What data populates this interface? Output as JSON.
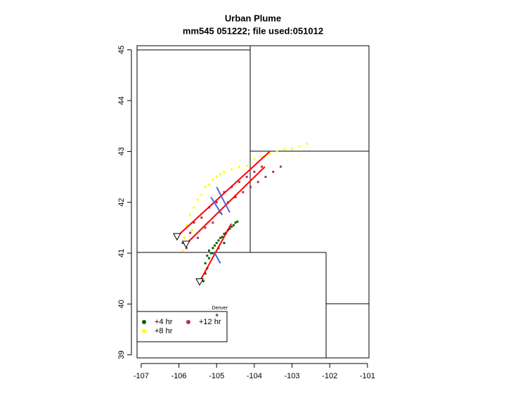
{
  "chart_data": {
    "type": "scatter",
    "title": "Urban Plume",
    "subtitle": "mm545 051222; file used:051012",
    "xlim": [
      -107.11,
      -100.96
    ],
    "ylim": [
      38.94,
      45.08
    ],
    "xticks": [
      -107,
      -106,
      -105,
      -104,
      -103,
      -102,
      -101
    ],
    "yticks": [
      39,
      40,
      41,
      42,
      43,
      44,
      45
    ],
    "series": [
      {
        "name": "+4 hr",
        "color": "#006400",
        "x": [
          -105.35,
          -105.3,
          -105.25,
          -105.3,
          -105.2,
          -105.15,
          -105.2,
          -105.1,
          -105.05,
          -105.0,
          -104.95,
          -104.9,
          -104.85,
          -104.8,
          -104.75,
          -104.7,
          -104.65,
          -104.6,
          -104.55,
          -104.5,
          -104.45,
          -105.25,
          -105.1,
          -104.95,
          -104.8
        ],
        "values": [
          40.45,
          40.6,
          40.7,
          40.8,
          40.9,
          41.0,
          41.05,
          41.1,
          41.15,
          41.2,
          41.25,
          41.3,
          41.32,
          41.38,
          41.4,
          41.45,
          41.48,
          41.52,
          41.55,
          41.6,
          41.62,
          40.95,
          41.0,
          41.1,
          41.2
        ]
      },
      {
        "name": "+8 hr",
        "color": "#ffff00",
        "x": [
          -105.9,
          -105.85,
          -105.8,
          -105.7,
          -105.6,
          -105.5,
          -105.4,
          -105.3,
          -105.2,
          -105.1,
          -105.0,
          -104.9,
          -104.8,
          -104.6,
          -104.4,
          -104.2,
          -104.0,
          -103.8,
          -103.6,
          -103.4,
          -103.2,
          -103.0,
          -102.8,
          -102.6,
          -105.65
        ],
        "values": [
          41.05,
          41.3,
          41.55,
          41.75,
          41.9,
          42.05,
          42.15,
          42.3,
          42.35,
          42.45,
          42.5,
          42.55,
          42.6,
          42.65,
          42.7,
          42.72,
          42.85,
          42.9,
          42.95,
          43.0,
          43.05,
          43.05,
          43.1,
          43.15,
          41.45
        ]
      },
      {
        "name": "+12 hr",
        "color": "#b03060",
        "x": [
          -105.9,
          -105.8,
          -105.7,
          -105.6,
          -105.5,
          -105.4,
          -105.3,
          -105.2,
          -105.1,
          -105.0,
          -104.9,
          -104.8,
          -104.7,
          -104.6,
          -104.5,
          -104.4,
          -104.3,
          -104.2,
          -104.1,
          -104.0,
          -103.9,
          -103.8,
          -103.7,
          -103.5,
          -103.3
        ],
        "values": [
          41.2,
          41.1,
          41.4,
          41.6,
          41.3,
          41.7,
          41.5,
          41.9,
          41.6,
          42.0,
          41.8,
          42.2,
          42.0,
          42.3,
          42.1,
          42.4,
          42.2,
          42.5,
          42.3,
          42.6,
          42.4,
          42.7,
          42.5,
          42.6,
          42.7
        ]
      }
    ],
    "lines": [
      {
        "color": "#ff0000",
        "x": [
          -106.05,
          -103.59
        ],
        "values": [
          41.33,
          43.0
        ]
      },
      {
        "color": "#ff0000",
        "x": [
          -105.81,
          -103.72
        ],
        "values": [
          41.18,
          42.7
        ]
      },
      {
        "color": "#ff0000",
        "x": [
          -105.45,
          -104.61
        ],
        "values": [
          40.44,
          41.58
        ]
      },
      {
        "color": "#4169e1",
        "x": [
          -105.0,
          -104.65
        ],
        "values": [
          42.3,
          41.8
        ]
      },
      {
        "color": "#4169e1",
        "x": [
          -105.15,
          -104.85
        ],
        "values": [
          42.1,
          41.75
        ]
      },
      {
        "color": "#4169e1",
        "x": [
          -105.05,
          -104.9
        ],
        "values": [
          41.0,
          40.8
        ]
      }
    ],
    "annotation": {
      "text": "Denver",
      "x": -104.99,
      "y": 39.74
    }
  }
}
